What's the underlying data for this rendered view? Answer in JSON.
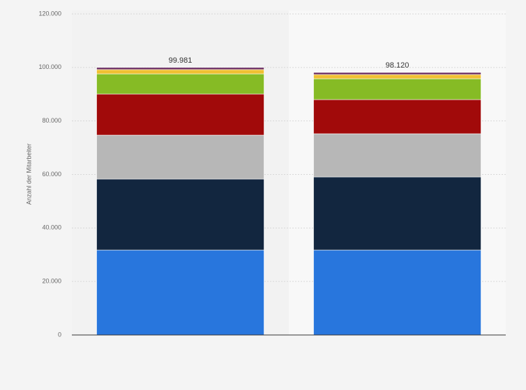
{
  "chart_data": {
    "type": "stacked-bar",
    "y_label": "Anzahl der Mitarbeiter",
    "categories": [
      null,
      null
    ],
    "series": [
      {
        "color": "#2876dd",
        "values": [
          31750,
          31750
        ]
      },
      {
        "color": "#12263f",
        "values": [
          26550,
          27330
        ]
      },
      {
        "color": "#b7b7b7",
        "values": [
          16400,
          16140
        ]
      },
      {
        "color": "#a10a0a",
        "values": [
          15360,
          12760
        ]
      },
      {
        "color": "#86bb25",
        "values": [
          7540,
          7800
        ]
      },
      {
        "color": "#f0c032",
        "values": [
          1600,
          1570
        ]
      },
      {
        "color": "#6a2a5e",
        "values": [
          781,
          770
        ]
      }
    ],
    "totals": [
      99981,
      98120
    ],
    "value_labels": [
      "99.981",
      "98.120"
    ],
    "ylim": [
      0,
      120000
    ],
    "yticks": [
      0,
      {
        "value": 20000,
        "label": "20.000"
      },
      {
        "value": 40000,
        "label": "40.000"
      },
      {
        "value": 60000,
        "label": "60.000"
      },
      {
        "value": 80000,
        "label": "80.000"
      },
      {
        "value": 100000,
        "label": "100.000"
      },
      {
        "value": 120000,
        "label": "120.000"
      }
    ],
    "grid": true
  }
}
